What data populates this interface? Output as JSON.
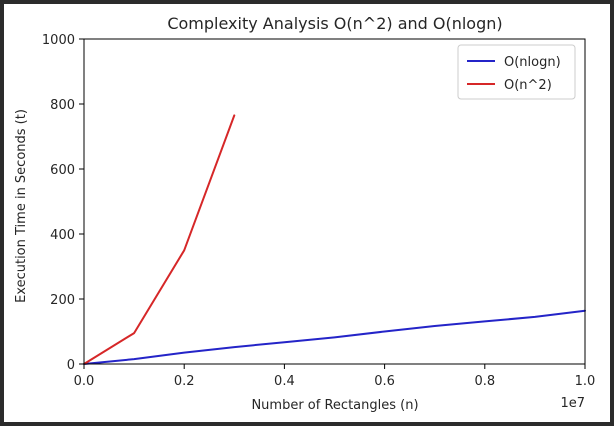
{
  "chart_data": {
    "type": "line",
    "title": "Complexity Analysis O(n^2) and O(nlogn)",
    "xlabel": "Number of Rectangles (n)",
    "ylabel": "Execution Time in Seconds (t)",
    "x_offset_label": "1e7",
    "xlim": [
      0,
      1.0
    ],
    "ylim": [
      0,
      1000
    ],
    "xticks": [
      "0.0",
      "0.2",
      "0.4",
      "0.6",
      "0.8",
      "1.0"
    ],
    "yticks": [
      "0",
      "200",
      "400",
      "600",
      "800",
      "1000"
    ],
    "grid": false,
    "legend_position": "top-right",
    "series": [
      {
        "name": "O(nlogn)",
        "color": "#2424c8",
        "x": [
          0,
          0.1,
          0.2,
          0.3,
          0.4,
          0.5,
          0.6,
          0.7,
          0.8,
          0.9,
          1.0
        ],
        "y": [
          0,
          15,
          35,
          52,
          67,
          82,
          100,
          117,
          131,
          145,
          164
        ]
      },
      {
        "name": "O(n^2)",
        "color": "#d62728",
        "x": [
          0,
          0.1,
          0.2,
          0.3
        ],
        "y": [
          0,
          95,
          350,
          765
        ]
      }
    ]
  }
}
